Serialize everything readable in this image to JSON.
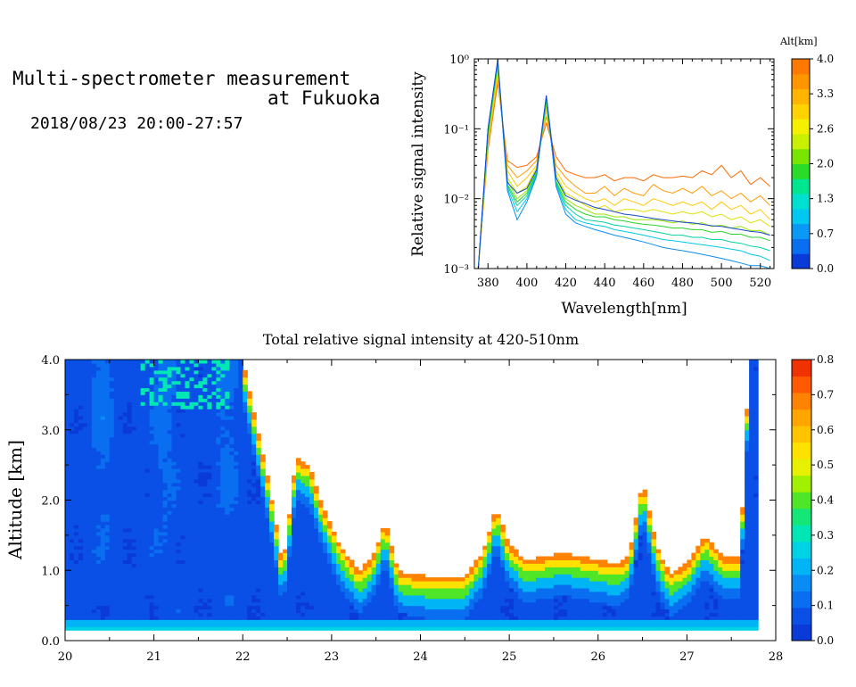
{
  "header": {
    "title_line1": "Multi-spectrometer measurement",
    "title_line2": "at Fukuoka",
    "time_range": "2018/08/23 20:00-27:57"
  },
  "chart_data": [
    {
      "type": "line",
      "name": "spectrum",
      "xlabel": "Wavelength[nm]",
      "ylabel": "Relative signal intensity",
      "yscale": "log",
      "xlim": [
        373,
        527
      ],
      "ylim": [
        0.001,
        1
      ],
      "xticks": [
        380,
        400,
        420,
        440,
        460,
        480,
        500,
        520
      ],
      "yticks": [
        {
          "value": 1,
          "label": "10⁰"
        },
        {
          "value": 0.1,
          "label": "10⁻¹"
        },
        {
          "value": 0.01,
          "label": "10⁻²"
        },
        {
          "value": 0.001,
          "label": "10⁻³"
        }
      ],
      "x": [
        375,
        380,
        385,
        390,
        395,
        400,
        405,
        410,
        415,
        420,
        425,
        430,
        435,
        440,
        445,
        450,
        455,
        460,
        465,
        470,
        475,
        480,
        485,
        490,
        495,
        500,
        505,
        510,
        515,
        520,
        525
      ],
      "series": [
        {
          "color": "#ff6a00",
          "values": [
            0.001,
            0.05,
            0.45,
            0.035,
            0.028,
            0.03,
            0.04,
            0.12,
            0.04,
            0.025,
            0.022,
            0.02,
            0.02,
            0.022,
            0.018,
            0.02,
            0.02,
            0.018,
            0.022,
            0.02,
            0.02,
            0.021,
            0.02,
            0.025,
            0.022,
            0.03,
            0.02,
            0.025,
            0.016,
            0.02,
            0.015
          ]
        },
        {
          "color": "#ff9a00",
          "values": [
            0.001,
            0.06,
            0.5,
            0.03,
            0.02,
            0.025,
            0.035,
            0.15,
            0.03,
            0.02,
            0.015,
            0.012,
            0.012,
            0.015,
            0.011,
            0.014,
            0.012,
            0.011,
            0.016,
            0.013,
            0.012,
            0.014,
            0.012,
            0.015,
            0.011,
            0.013,
            0.01,
            0.012,
            0.009,
            0.011,
            0.008
          ]
        },
        {
          "color": "#ffc800",
          "values": [
            0.001,
            0.06,
            0.6,
            0.025,
            0.015,
            0.02,
            0.03,
            0.18,
            0.025,
            0.015,
            0.012,
            0.01,
            0.009,
            0.01,
            0.008,
            0.01,
            0.009,
            0.008,
            0.01,
            0.009,
            0.008,
            0.009,
            0.008,
            0.009,
            0.007,
            0.009,
            0.007,
            0.008,
            0.006,
            0.007,
            0.005
          ]
        },
        {
          "color": "#e0e000",
          "values": [
            0.001,
            0.07,
            0.7,
            0.02,
            0.012,
            0.015,
            0.028,
            0.2,
            0.022,
            0.012,
            0.01,
            0.008,
            0.007,
            0.008,
            0.0065,
            0.007,
            0.007,
            0.0065,
            0.007,
            0.0065,
            0.006,
            0.0065,
            0.006,
            0.0065,
            0.0055,
            0.006,
            0.005,
            0.0055,
            0.0045,
            0.005,
            0.004
          ]
        },
        {
          "color": "#98e600",
          "values": [
            0.001,
            0.08,
            0.8,
            0.018,
            0.01,
            0.013,
            0.025,
            0.22,
            0.02,
            0.01,
            0.008,
            0.007,
            0.006,
            0.006,
            0.0055,
            0.0055,
            0.005,
            0.005,
            0.005,
            0.0048,
            0.0045,
            0.0048,
            0.0043,
            0.0045,
            0.004,
            0.0042,
            0.0038,
            0.004,
            0.0035,
            0.0035,
            0.003
          ]
        },
        {
          "color": "#28d428",
          "values": [
            0.001,
            0.08,
            0.85,
            0.016,
            0.009,
            0.012,
            0.024,
            0.25,
            0.018,
            0.009,
            0.007,
            0.006,
            0.0055,
            0.0055,
            0.005,
            0.0048,
            0.0045,
            0.0043,
            0.0042,
            0.004,
            0.0038,
            0.0038,
            0.0036,
            0.0036,
            0.0033,
            0.0034,
            0.0031,
            0.0031,
            0.0028,
            0.0028,
            0.0025
          ]
        },
        {
          "color": "#00d2a0",
          "values": [
            0.001,
            0.09,
            0.9,
            0.015,
            0.008,
            0.011,
            0.023,
            0.27,
            0.017,
            0.008,
            0.006,
            0.005,
            0.0048,
            0.0046,
            0.0042,
            0.004,
            0.0038,
            0.0036,
            0.0034,
            0.0032,
            0.003,
            0.003,
            0.0028,
            0.0028,
            0.0026,
            0.0026,
            0.0024,
            0.0023,
            0.0021,
            0.002,
            0.0018
          ]
        },
        {
          "color": "#00c8e6",
          "values": [
            0.001,
            0.1,
            0.92,
            0.014,
            0.0065,
            0.01,
            0.022,
            0.28,
            0.016,
            0.007,
            0.005,
            0.0045,
            0.0042,
            0.004,
            0.0036,
            0.0034,
            0.0032,
            0.003,
            0.0028,
            0.0026,
            0.0025,
            0.0024,
            0.0023,
            0.0022,
            0.0021,
            0.002,
            0.0019,
            0.0018,
            0.0016,
            0.0015,
            0.0013
          ]
        },
        {
          "color": "#0a8cf0",
          "values": [
            0.001,
            0.1,
            0.95,
            0.013,
            0.005,
            0.009,
            0.021,
            0.3,
            0.015,
            0.006,
            0.0045,
            0.004,
            0.0036,
            0.0033,
            0.003,
            0.0028,
            0.0026,
            0.0024,
            0.0022,
            0.002,
            0.0019,
            0.0018,
            0.0017,
            0.0016,
            0.0015,
            0.0014,
            0.0013,
            0.0012,
            0.0011,
            0.0011,
            0.001
          ]
        },
        {
          "color": "#1848c8",
          "values": [
            0.001,
            0.1,
            0.98,
            0.017,
            0.012,
            0.014,
            0.026,
            0.3,
            0.02,
            0.011,
            0.0095,
            0.0085,
            0.0075,
            0.007,
            0.0065,
            0.006,
            0.0058,
            0.0055,
            0.0052,
            0.005,
            0.0048,
            0.0046,
            0.0045,
            0.0043,
            0.0041,
            0.004,
            0.0038,
            0.0036,
            0.0034,
            0.0033,
            0.003
          ]
        }
      ],
      "colorbar": {
        "label": "Alt[km]",
        "ticks": [
          "0.0",
          "0.7",
          "1.3",
          "2.0",
          "2.6",
          "3.3",
          "4.0"
        ],
        "colors": [
          "#0a3ad8",
          "#0a6ef0",
          "#0a9af5",
          "#00c8f0",
          "#00e0d0",
          "#00e690",
          "#28dc28",
          "#78e600",
          "#c8f000",
          "#f5f000",
          "#ffd200",
          "#ffb400",
          "#ff9600",
          "#ff7800"
        ]
      }
    },
    {
      "type": "heatmap",
      "name": "time-altitude",
      "title": "Total relative signal intensity at 420-510nm",
      "ylabel": "Altitude [km]",
      "xlim": [
        20,
        28
      ],
      "ylim": [
        0,
        4
      ],
      "xticks": [
        "20",
        "21",
        "22",
        "23",
        "24",
        "25",
        "26",
        "27",
        "28"
      ],
      "yticks": [
        "0.0",
        "1.0",
        "2.0",
        "3.0",
        "4.0"
      ],
      "data_x_range": [
        20,
        27.8
      ],
      "data_y_range": [
        0.15,
        4.0
      ],
      "cloud_base_km": {
        "time": [
          22.0,
          22.3,
          22.45,
          22.6,
          22.75,
          22.9,
          23.1,
          23.3,
          23.45,
          23.6,
          23.75,
          23.9,
          24.1,
          24.3,
          24.5,
          24.7,
          24.85,
          25.0,
          25.2,
          25.4,
          25.6,
          25.8,
          26.0,
          26.2,
          26.35,
          26.5,
          26.65,
          26.8,
          27.0,
          27.2,
          27.4,
          27.6,
          27.7
        ],
        "height": [
          4.0,
          2.2,
          1.05,
          2.6,
          2.5,
          1.9,
          1.35,
          1.0,
          1.15,
          1.7,
          1.0,
          0.95,
          0.92,
          0.92,
          0.92,
          1.25,
          1.9,
          1.35,
          1.15,
          1.2,
          1.25,
          1.2,
          1.15,
          1.1,
          1.2,
          2.3,
          1.4,
          0.95,
          1.1,
          1.5,
          1.2,
          1.2,
          4.0
        ]
      },
      "colorbar": {
        "ticks": [
          "0.0",
          "0.1",
          "0.2",
          "0.3",
          "0.4",
          "0.5",
          "0.6",
          "0.7",
          "0.8"
        ],
        "colors": [
          "#0a3ad8",
          "#0a50e6",
          "#0a6ef0",
          "#0a8cf5",
          "#00b4f5",
          "#00d2e6",
          "#00e6b4",
          "#14e678",
          "#50e628",
          "#a0f000",
          "#e6f000",
          "#ffe100",
          "#ffc300",
          "#ffa500",
          "#ff8200",
          "#ff5a00",
          "#f03200"
        ]
      }
    }
  ]
}
